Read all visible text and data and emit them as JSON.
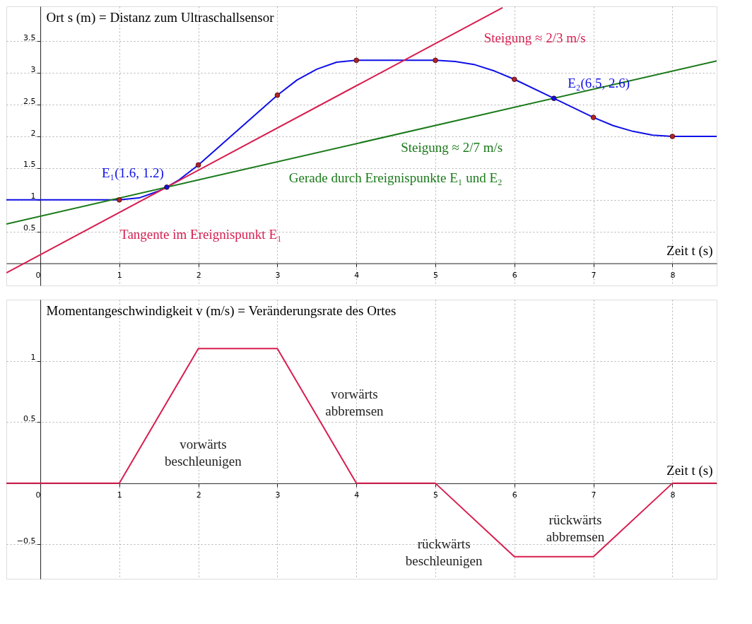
{
  "chart_data": [
    {
      "type": "line",
      "ylabel": "Ort s (m) = Distanz zum Ultraschallsensor",
      "xlabel": "Zeit t  (s)",
      "xlim": [
        -0.43,
        8.56
      ],
      "ylim": [
        -0.35,
        4.05
      ],
      "xticks": [
        0,
        1,
        2,
        3,
        4,
        5,
        6,
        7,
        8
      ],
      "yticks": [
        0.5,
        1,
        1.5,
        2,
        2.5,
        3,
        3.5
      ],
      "grid": true,
      "series": [
        {
          "color": "#1010e8",
          "x": [
            -0.43,
            1,
            1.25,
            1.5,
            1.6,
            1.75,
            2,
            3,
            3.25,
            3.5,
            3.75,
            4,
            5,
            5.25,
            5.5,
            5.75,
            6,
            6.5,
            7,
            7.25,
            7.5,
            7.75,
            8,
            8.56
          ],
          "values": [
            1,
            1,
            1.03,
            1.14,
            1.2,
            1.31,
            1.55,
            2.65,
            2.89,
            3.06,
            3.17,
            3.2,
            3.2,
            3.18,
            3.13,
            3.03,
            2.9,
            2.6,
            2.3,
            2.17,
            2.08,
            2.02,
            2,
            2
          ]
        },
        {
          "color": "#d81e50",
          "x": [
            -0.43,
            5.85
          ],
          "values": [
            -0.15,
            4.03
          ]
        },
        {
          "color": "#1a7a1a",
          "x": [
            -0.43,
            8.56
          ],
          "values": [
            0.62,
            3.19
          ]
        },
        {
          "type": "scatter",
          "marker": "circle",
          "color": "#b0242a",
          "x": [
            1,
            2,
            3,
            4,
            5,
            6,
            7,
            8
          ],
          "values": [
            1,
            1.55,
            2.65,
            3.2,
            3.2,
            2.9,
            2.3,
            2
          ]
        },
        {
          "type": "scatter",
          "marker": "circle",
          "color": "#1010e8",
          "x": [
            1.6,
            6.5
          ],
          "values": [
            1.2,
            2.6
          ]
        }
      ],
      "annotations": [
        "Steigung ≈ 2/3 m/s",
        "E₁(1.6, 1.2)",
        "E₂(6.5, 2.6)",
        "Steigung ≈ 2/7 m/s",
        "Gerade durch Ereignispunkte E₁ und E₂",
        "Tangente im Ereignispunkt E₁"
      ]
    },
    {
      "type": "line",
      "ylabel": "Momentangeschwindigkeit v (m/s) = Veränderungsrate des Ortes",
      "xlabel": "Zeit t  (s)",
      "xlim": [
        -0.43,
        8.56
      ],
      "ylim": [
        -0.78,
        1.5
      ],
      "xticks": [
        0,
        1,
        2,
        3,
        4,
        5,
        6,
        7,
        8
      ],
      "yticks": [
        -0.5,
        0.5,
        1
      ],
      "grid": true,
      "series": [
        {
          "color": "#d81e50",
          "x": [
            -0.43,
            1,
            2,
            3,
            4,
            5,
            6,
            7,
            8,
            8.56
          ],
          "values": [
            0,
            0,
            1.1,
            1.1,
            0,
            0,
            -0.6,
            -0.6,
            0,
            0
          ]
        }
      ],
      "annotations": [
        "vorwärts\nbeschleunigen",
        "vorwärts\nabbremsen",
        "rückwärts\nbeschleunigen",
        "rückwärts\nabbremsen"
      ]
    }
  ]
}
